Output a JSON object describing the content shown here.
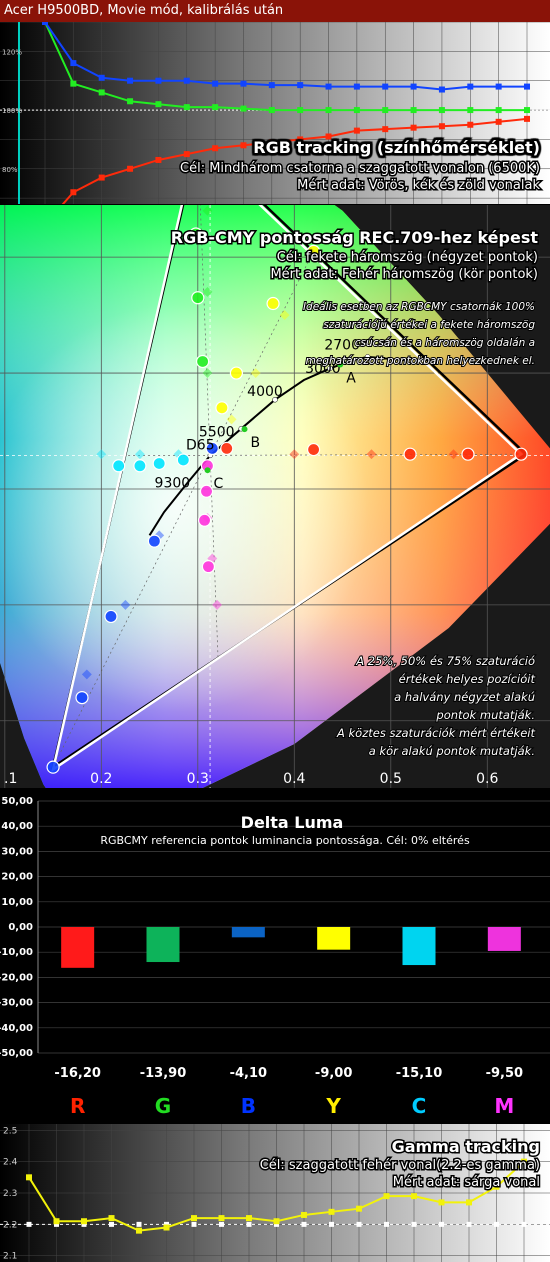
{
  "header": {
    "title": "Acer H9500BD, Movie mód, kalibrálás után"
  },
  "colors": {
    "red": "#ff2a0a",
    "green": "#22ee22",
    "blue": "#1144ff",
    "yellow": "#ffff00",
    "cyan": "#00e5ff",
    "magenta": "#ff33dd",
    "white": "#ffffff",
    "gamma_line": "#f2f20a",
    "header_bg": "#8a1308"
  },
  "chart_data": [
    {
      "type": "line",
      "title": "RGB tracking (színhőmérséklet)",
      "notes": [
        "Cél: Mindhárom csatorna a szaggatott vonalon (6500K)",
        "Mért adat: Vörös, kék és zöld vonalak"
      ],
      "y_ticks": [
        "120%",
        "100%",
        "80%"
      ],
      "ylim": [
        68,
        130
      ],
      "target": 100,
      "x": [
        1,
        2,
        3,
        4,
        5,
        6,
        7,
        8,
        9,
        10,
        11,
        12,
        13,
        14,
        15,
        16,
        17,
        18
      ],
      "series": [
        {
          "color_key": "red",
          "values": [
            61,
            72,
            77,
            80,
            83,
            85,
            87,
            88,
            89,
            90,
            91,
            93,
            93.5,
            94,
            94.5,
            95,
            96,
            97
          ]
        },
        {
          "color_key": "green",
          "values": [
            130,
            109,
            106,
            103,
            102,
            101,
            101,
            100.5,
            100,
            100,
            100,
            100,
            100,
            100,
            100,
            100,
            100,
            100
          ]
        },
        {
          "color_key": "blue",
          "values": [
            130,
            116,
            111,
            110,
            110,
            110,
            109,
            109,
            108.5,
            108.5,
            108,
            108,
            108,
            108,
            107,
            108,
            108,
            108
          ]
        }
      ]
    },
    {
      "type": "scatter",
      "title": "RGB-CMY pontosság REC.709-hez képest",
      "notes": [
        "Cél: fekete háromszög (négyzet pontok)",
        "Mért adat: Fehér háromszög (kör pontok)"
      ],
      "description": "Ideális esetben az RGBCMY csatornák 100% szaturációjú értékei a fekete háromszög csúcsán és a háromszög oldalán a meghatározott pontokban helyezkednek el.",
      "legend_lines": [
        "A 25%, 50% és 75% szaturáció",
        "értékek helyes pozícióit",
        "a halvány négyzet alakú",
        "pontok mutatják.",
        "A köztes szaturációk mért értékeit",
        "a kör alakú pontok mutatják."
      ],
      "x_ticks": [
        0.2,
        0.3,
        0.4,
        0.5,
        0.6
      ],
      "tick_labels": [
        "0.2",
        "0.3",
        "0.4",
        "0.5",
        "0.6"
      ],
      "corner_label": ".1",
      "xlim": [
        0.095,
        0.665
      ],
      "ylim": [
        0.042,
        0.545
      ],
      "white_point": [
        0.3127,
        0.329
      ],
      "reference_triangle": [
        [
          0.64,
          0.33
        ],
        [
          0.3,
          0.6
        ],
        [
          0.15,
          0.06
        ]
      ],
      "measured_triangle": [
        [
          0.635,
          0.33
        ],
        [
          0.298,
          0.598
        ],
        [
          0.15,
          0.058
        ]
      ],
      "planck_labels": [
        {
          "text": "2700",
          "x": 0.46,
          "y": 0.415
        },
        {
          "text": "3000",
          "x": 0.44,
          "y": 0.395
        },
        {
          "text": "4000",
          "x": 0.38,
          "y": 0.375
        },
        {
          "text": "5500",
          "x": 0.33,
          "y": 0.34
        },
        {
          "text": "D65",
          "x": 0.313,
          "y": 0.329
        },
        {
          "text": "9300",
          "x": 0.284,
          "y": 0.296
        }
      ],
      "markers": [
        {
          "text": "A",
          "x": 0.4476,
          "y": 0.4074
        },
        {
          "text": "B",
          "x": 0.3484,
          "y": 0.3516
        },
        {
          "text": "C",
          "x": 0.3101,
          "y": 0.3162
        }
      ],
      "measured_points": [
        {
          "c": "red",
          "x": 0.635,
          "y": 0.33
        },
        {
          "c": "red",
          "x": 0.58,
          "y": 0.33
        },
        {
          "c": "red",
          "x": 0.52,
          "y": 0.33
        },
        {
          "c": "red",
          "x": 0.42,
          "y": 0.334
        },
        {
          "c": "red",
          "x": 0.33,
          "y": 0.335
        },
        {
          "c": "green",
          "x": 0.298,
          "y": 0.598
        },
        {
          "c": "green",
          "x": 0.298,
          "y": 0.52
        },
        {
          "c": "green",
          "x": 0.3,
          "y": 0.465
        },
        {
          "c": "green",
          "x": 0.305,
          "y": 0.41
        },
        {
          "c": "blue",
          "x": 0.15,
          "y": 0.06
        },
        {
          "c": "blue",
          "x": 0.18,
          "y": 0.12
        },
        {
          "c": "blue",
          "x": 0.21,
          "y": 0.19
        },
        {
          "c": "blue",
          "x": 0.255,
          "y": 0.255
        },
        {
          "c": "blue",
          "x": 0.315,
          "y": 0.335
        },
        {
          "c": "yellow",
          "x": 0.42,
          "y": 0.505
        },
        {
          "c": "yellow",
          "x": 0.378,
          "y": 0.46
        },
        {
          "c": "yellow",
          "x": 0.34,
          "y": 0.4
        },
        {
          "c": "yellow",
          "x": 0.325,
          "y": 0.37
        },
        {
          "c": "cyan",
          "x": 0.218,
          "y": 0.32
        },
        {
          "c": "cyan",
          "x": 0.24,
          "y": 0.32
        },
        {
          "c": "cyan",
          "x": 0.26,
          "y": 0.322
        },
        {
          "c": "cyan",
          "x": 0.285,
          "y": 0.325
        },
        {
          "c": "magenta",
          "x": 0.311,
          "y": 0.233
        },
        {
          "c": "magenta",
          "x": 0.307,
          "y": 0.273
        },
        {
          "c": "magenta",
          "x": 0.309,
          "y": 0.298
        },
        {
          "c": "magenta",
          "x": 0.31,
          "y": 0.32
        }
      ],
      "target_points": [
        {
          "c": "red",
          "x": 0.565,
          "y": 0.33
        },
        {
          "c": "red",
          "x": 0.48,
          "y": 0.33
        },
        {
          "c": "red",
          "x": 0.4,
          "y": 0.33
        },
        {
          "c": "green",
          "x": 0.31,
          "y": 0.54
        },
        {
          "c": "green",
          "x": 0.31,
          "y": 0.47
        },
        {
          "c": "green",
          "x": 0.31,
          "y": 0.4
        },
        {
          "c": "blue",
          "x": 0.185,
          "y": 0.14
        },
        {
          "c": "blue",
          "x": 0.225,
          "y": 0.2
        },
        {
          "c": "blue",
          "x": 0.26,
          "y": 0.26
        },
        {
          "c": "yellow",
          "x": 0.39,
          "y": 0.45
        },
        {
          "c": "yellow",
          "x": 0.36,
          "y": 0.4
        },
        {
          "c": "yellow",
          "x": 0.335,
          "y": 0.36
        },
        {
          "c": "cyan",
          "x": 0.2,
          "y": 0.33
        },
        {
          "c": "cyan",
          "x": 0.24,
          "y": 0.33
        },
        {
          "c": "cyan",
          "x": 0.28,
          "y": 0.33
        },
        {
          "c": "magenta",
          "x": 0.32,
          "y": 0.2
        },
        {
          "c": "magenta",
          "x": 0.315,
          "y": 0.24
        },
        {
          "c": "magenta",
          "x": 0.31,
          "y": 0.275
        }
      ]
    },
    {
      "type": "bar",
      "title": "Delta Luma",
      "subtitle": "RGBCMY referencia pontok luminancia pontossága. Cél: 0% eltérés",
      "categories": [
        "R",
        "G",
        "B",
        "Y",
        "C",
        "M"
      ],
      "values": [
        -16.2,
        -13.9,
        -4.1,
        -9.0,
        -15.1,
        -9.5
      ],
      "value_labels": [
        "-16,20",
        "-13,90",
        "-4,10",
        "-9,00",
        "-15,10",
        "-9,50"
      ],
      "bar_colors": [
        "#ff1a1a",
        "#0db35a",
        "#0b63c4",
        "#ffff00",
        "#00d4f0",
        "#ee33dd"
      ],
      "label_colors": [
        "#ff2200",
        "#22dd22",
        "#0033ff",
        "#ffee00",
        "#00ccff",
        "#ff33ff"
      ],
      "y_ticks": [
        "50,00",
        "40,00",
        "30,00",
        "20,00",
        "10,00",
        "0,00",
        "-10,00",
        "-20,00",
        "-30,00",
        "-40,00",
        "-50,00"
      ],
      "ylim": [
        -50,
        50
      ],
      "grid": true
    },
    {
      "type": "line",
      "title": "Gamma tracking",
      "notes": [
        "Cél: szaggatott fehér vonal(2.2-es gamma)",
        "Mért adat: sárga vonal"
      ],
      "y_ticks": [
        "2.5",
        "2.4",
        "2.3",
        "2.2",
        "2.1"
      ],
      "ylim": [
        2.08,
        2.52
      ],
      "target": 2.2,
      "x": [
        1,
        2,
        3,
        4,
        5,
        6,
        7,
        8,
        9,
        10,
        11,
        12,
        13,
        14,
        15,
        16,
        17,
        18,
        19
      ],
      "values": [
        2.35,
        2.21,
        2.21,
        2.22,
        2.18,
        2.19,
        2.22,
        2.22,
        2.22,
        2.21,
        2.23,
        2.24,
        2.25,
        2.29,
        2.29,
        2.27,
        2.27,
        2.32,
        2.4
      ]
    }
  ]
}
